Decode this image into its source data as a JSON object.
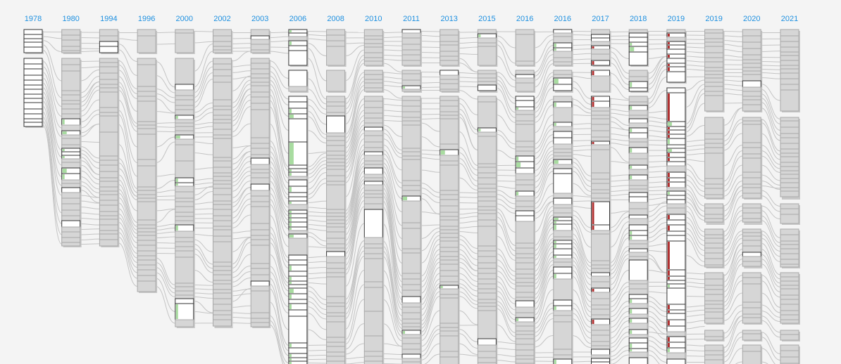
{
  "columns": [
    {
      "label": "1978"
    },
    {
      "label": "1980"
    },
    {
      "label": "1994"
    },
    {
      "label": "1996"
    },
    {
      "label": "2000"
    },
    {
      "label": "2002"
    },
    {
      "label": "2003"
    },
    {
      "label": "2006"
    },
    {
      "label": "2008"
    },
    {
      "label": "2010"
    },
    {
      "label": "2011"
    },
    {
      "label": "2013"
    },
    {
      "label": "2015"
    },
    {
      "label": "2016"
    },
    {
      "label": "2016"
    },
    {
      "label": "2017"
    },
    {
      "label": "2018"
    },
    {
      "label": "2019"
    },
    {
      "label": "2019"
    },
    {
      "label": "2020"
    },
    {
      "label": "2021"
    }
  ],
  "colors": {
    "label": "#1e90e0",
    "unchanged": "#d6d6d6",
    "changed": "#ffffff",
    "added_marker": "#a8dca0",
    "removed_marker": "#b03030",
    "connector": "#c4c4c4",
    "background": "#f4f4f4"
  }
}
